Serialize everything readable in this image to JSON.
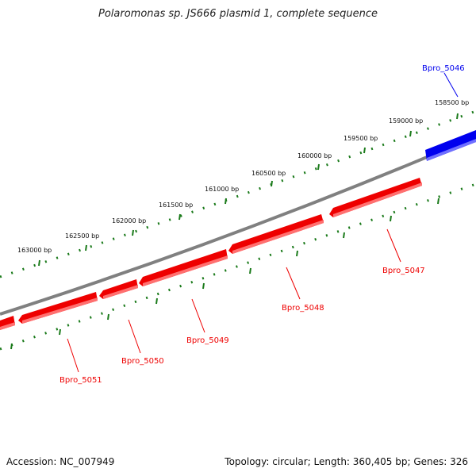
{
  "title": "Polaromonas sp. JS666 plasmid 1, complete sequence",
  "footer": {
    "accession": "Accession: NC_007949",
    "stats": "Topology: circular; Length: 360,405 bp; Genes: 326"
  },
  "colors": {
    "forward_gene": "#0000ee",
    "reverse_gene": "#ee0000",
    "backbone": "#808080",
    "ticks": "#1a7a1a"
  },
  "ticks": [
    "158500 bp",
    "159000 bp",
    "159500 bp",
    "160000 bp",
    "160500 bp",
    "161000 bp",
    "161500 bp",
    "162000 bp",
    "162500 bp",
    "163000 bp"
  ],
  "genes": [
    {
      "name": "Bpro_5046",
      "strand": "forward"
    },
    {
      "name": "Bpro_5047",
      "strand": "reverse"
    },
    {
      "name": "Bpro_5048",
      "strand": "reverse"
    },
    {
      "name": "Bpro_5049",
      "strand": "reverse"
    },
    {
      "name": "Bpro_5050",
      "strand": "reverse"
    },
    {
      "name": "Bpro_5051",
      "strand": "reverse"
    }
  ]
}
